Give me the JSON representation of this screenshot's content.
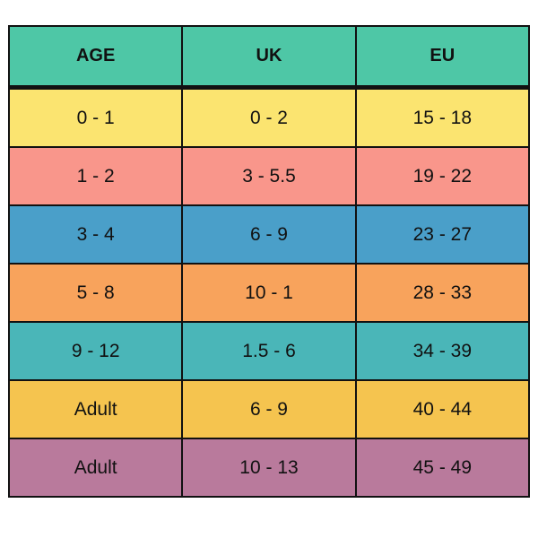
{
  "table": {
    "headers": [
      "AGE",
      "UK",
      "EU"
    ],
    "header_color": "#4ec7a6",
    "rows": [
      {
        "cells": [
          "0 - 1",
          "0 - 2",
          "15 - 18"
        ],
        "color": "#fbe470"
      },
      {
        "cells": [
          "1 - 2",
          "3 - 5.5",
          "19 - 22"
        ],
        "color": "#f9968b"
      },
      {
        "cells": [
          "3 - 4",
          "6 - 9",
          "23 - 27"
        ],
        "color": "#4a9fc9"
      },
      {
        "cells": [
          "5 - 8",
          "10 - 1",
          "28 - 33"
        ],
        "color": "#f8a35c"
      },
      {
        "cells": [
          "9 - 12",
          "1.5 - 6",
          "34 - 39"
        ],
        "color": "#4ab6b8"
      },
      {
        "cells": [
          "Adult",
          "6 - 9",
          "40 - 44"
        ],
        "color": "#f5c44f"
      },
      {
        "cells": [
          "Adult",
          "10 - 13",
          "45 - 49"
        ],
        "color": "#b97a9c"
      }
    ]
  }
}
